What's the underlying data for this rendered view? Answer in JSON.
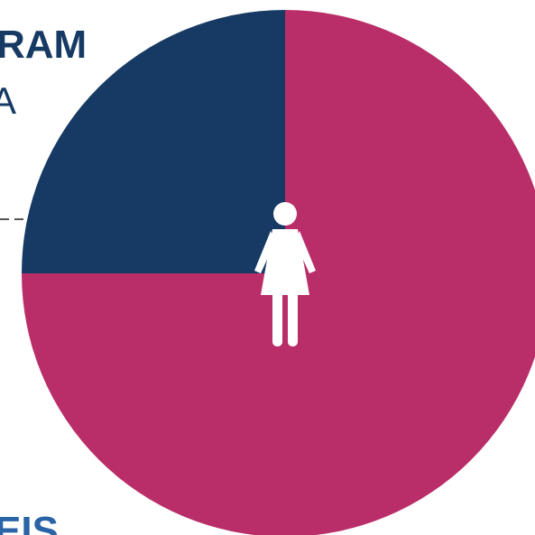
{
  "chart_data": {
    "type": "pie",
    "values": [
      75,
      25
    ],
    "colors": [
      "#b92e68",
      "#163a63"
    ]
  },
  "text_fragments": [
    "RAM",
    "A",
    "EIS"
  ]
}
